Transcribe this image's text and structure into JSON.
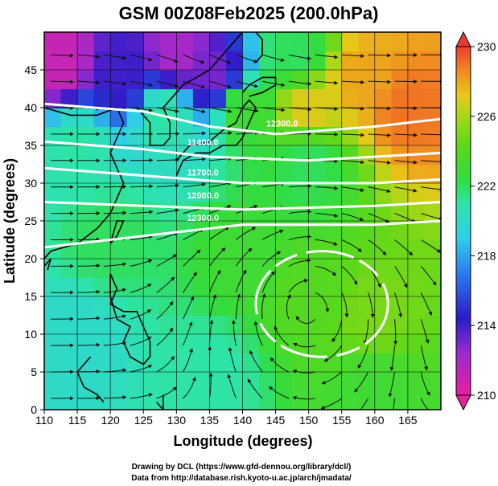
{
  "chart_data": {
    "type": "heatmap",
    "title": "GSM 00Z08Feb2025 (200.0hPa)",
    "xlabel": "Longitude (degrees)",
    "ylabel": "Latitude  (degrees)",
    "xlim": [
      110,
      170
    ],
    "ylim": [
      0,
      50
    ],
    "x_ticks": [
      "110",
      "115",
      "120",
      "125",
      "130",
      "135",
      "140",
      "145",
      "150",
      "155",
      "160",
      "165"
    ],
    "y_ticks": [
      "0",
      "5",
      "10",
      "15",
      "20",
      "25",
      "30",
      "35",
      "40",
      "45"
    ],
    "colorbar": {
      "min": 210,
      "max": 230,
      "ticks": [
        "210",
        "214",
        "218",
        "222",
        "226",
        "230"
      ],
      "colors": [
        "#e8209e",
        "#9a2bd0",
        "#2a1cc8",
        "#2a7cf0",
        "#2fcfe8",
        "#2ee3a8",
        "#32dc40",
        "#5ed818",
        "#a8d818",
        "#e8c818",
        "#f08a20",
        "#ee3c30"
      ]
    },
    "grid": true,
    "contour_labels": [
      "12300.0",
      "11400.0",
      "11700.0",
      "12000.0",
      "12300.0"
    ],
    "temperature_field": [
      {
        "lon": 112,
        "lat": 46,
        "value": 211
      },
      {
        "lon": 122,
        "lat": 44,
        "value": 214
      },
      {
        "lon": 130,
        "lat": 47,
        "value": 212
      },
      {
        "lon": 136,
        "lat": 44,
        "value": 213
      },
      {
        "lon": 148,
        "lat": 47,
        "value": 222
      },
      {
        "lon": 158,
        "lat": 44,
        "value": 228
      },
      {
        "lon": 165,
        "lat": 40,
        "value": 229
      },
      {
        "lon": 150,
        "lat": 40,
        "value": 227
      },
      {
        "lon": 140,
        "lat": 40,
        "value": 223
      },
      {
        "lon": 128,
        "lat": 39,
        "value": 221
      },
      {
        "lon": 115,
        "lat": 35,
        "value": 221
      },
      {
        "lon": 150,
        "lat": 33,
        "value": 222
      },
      {
        "lon": 120,
        "lat": 22,
        "value": 222
      },
      {
        "lon": 140,
        "lat": 20,
        "value": 223
      },
      {
        "lon": 150,
        "lat": 15,
        "value": 224
      },
      {
        "lon": 160,
        "lat": 12,
        "value": 225
      },
      {
        "lon": 115,
        "lat": 10,
        "value": 220
      },
      {
        "lon": 135,
        "lat": 5,
        "value": 221
      },
      {
        "lon": 160,
        "lat": 3,
        "value": 223
      }
    ]
  },
  "credits": {
    "line1": "Drawing by DCL (https://www.gfd-dennou.org/library/dcl/)",
    "line2": "Data from http://database.rish.kyoto-u.ac.jp/arch/jmadata/"
  }
}
